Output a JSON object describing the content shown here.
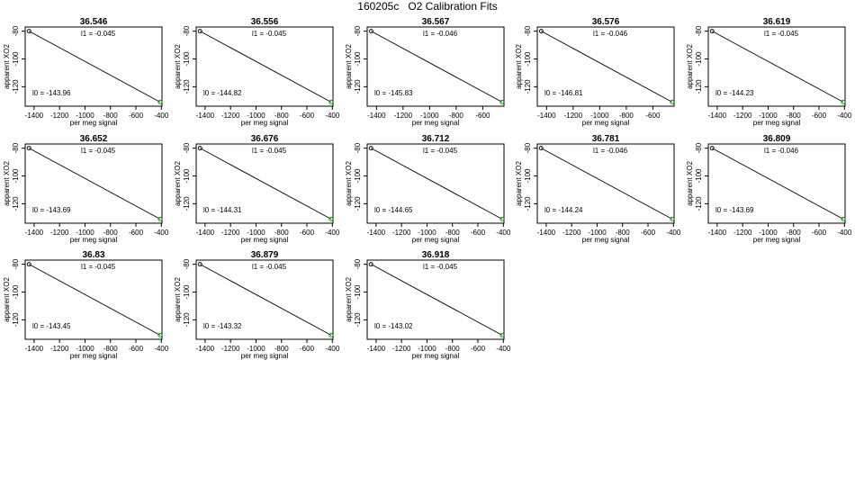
{
  "title": "160205c   O2 Calibration Fits",
  "colors": {
    "fit_line": "#000000",
    "start_marker": "#000000",
    "end_marker": "#00aa00",
    "frame": "#000000"
  },
  "chart_data": [
    {
      "type": "line",
      "title": "36.546",
      "xlabel": "per meg signal",
      "ylabel": "apparent XO2",
      "xticks": [
        -1400,
        -1200,
        -1000,
        -800,
        -600,
        -400
      ],
      "yticks": [
        -80,
        -100,
        -120
      ],
      "xlim": [
        -1470,
        -395
      ],
      "ylim": [
        -134,
        -77
      ],
      "x": [
        -1440,
        -410
      ],
      "y": [
        -80,
        -131
      ],
      "l1": "l1 =  -0.045",
      "l0": "l0 =  -143.96"
    },
    {
      "type": "line",
      "title": "36.556",
      "xlabel": "per meg signal",
      "ylabel": "apparent XO2",
      "xticks": [
        -1400,
        -1200,
        -1000,
        -800,
        -600,
        -400
      ],
      "yticks": [
        -80,
        -100,
        -120
      ],
      "xlim": [
        -1470,
        -395
      ],
      "ylim": [
        -134,
        -77
      ],
      "x": [
        -1440,
        -410
      ],
      "y": [
        -80,
        -131
      ],
      "l1": "l1 =  -0.045",
      "l0": "l0 =  -144.82"
    },
    {
      "type": "line",
      "title": "36.567",
      "xlabel": "per meg signal",
      "ylabel": "apparent XO2",
      "xticks": [
        -1400,
        -1200,
        -1000,
        -800,
        -600
      ],
      "yticks": [
        -80,
        -100,
        -120
      ],
      "xlim": [
        -1470,
        -440
      ],
      "ylim": [
        -134,
        -77
      ],
      "x": [
        -1440,
        -455
      ],
      "y": [
        -80,
        -131
      ],
      "l1": "l1 =  -0.046",
      "l0": "l0 =  -145.83"
    },
    {
      "type": "line",
      "title": "36.576",
      "xlabel": "per meg signal",
      "ylabel": "apparent XO2",
      "xticks": [
        -1400,
        -1200,
        -1000,
        -800,
        -600
      ],
      "yticks": [
        -80,
        -100,
        -120
      ],
      "xlim": [
        -1470,
        -440
      ],
      "ylim": [
        -134,
        -77
      ],
      "x": [
        -1440,
        -455
      ],
      "y": [
        -80,
        -131
      ],
      "l1": "l1 =  -0.046",
      "l0": "l0 =  -146.81"
    },
    {
      "type": "line",
      "title": "36.619",
      "xlabel": "per meg signal",
      "ylabel": "apparent XO2",
      "xticks": [
        -1400,
        -1200,
        -1000,
        -800,
        -600,
        -400
      ],
      "yticks": [
        -80,
        -100,
        -120
      ],
      "xlim": [
        -1470,
        -395
      ],
      "ylim": [
        -134,
        -77
      ],
      "x": [
        -1440,
        -410
      ],
      "y": [
        -80,
        -131
      ],
      "l1": "l1 =  -0.045",
      "l0": "l0 =  -144.23"
    },
    {
      "type": "line",
      "title": "36.652",
      "xlabel": "per meg signal",
      "ylabel": "apparent XO2",
      "xticks": [
        -1400,
        -1200,
        -1000,
        -800,
        -600,
        -400
      ],
      "yticks": [
        -80,
        -100,
        -120
      ],
      "xlim": [
        -1470,
        -395
      ],
      "ylim": [
        -134,
        -77
      ],
      "x": [
        -1440,
        -410
      ],
      "y": [
        -80,
        -131
      ],
      "l1": "l1 =  -0.045",
      "l0": "l0 =  -143.69"
    },
    {
      "type": "line",
      "title": "36.676",
      "xlabel": "per meg signal",
      "ylabel": "apparent XO2",
      "xticks": [
        -1400,
        -1200,
        -1000,
        -800,
        -600,
        -400
      ],
      "yticks": [
        -80,
        -100,
        -120
      ],
      "xlim": [
        -1470,
        -395
      ],
      "ylim": [
        -134,
        -77
      ],
      "x": [
        -1440,
        -410
      ],
      "y": [
        -80,
        -131
      ],
      "l1": "l1 =  -0.045",
      "l0": "l0 =  -144.31"
    },
    {
      "type": "line",
      "title": "36.712",
      "xlabel": "per meg signal",
      "ylabel": "apparent XO2",
      "xticks": [
        -1400,
        -1200,
        -1000,
        -800,
        -600,
        -400
      ],
      "yticks": [
        -80,
        -100,
        -120
      ],
      "xlim": [
        -1470,
        -395
      ],
      "ylim": [
        -134,
        -77
      ],
      "x": [
        -1440,
        -410
      ],
      "y": [
        -80,
        -131
      ],
      "l1": "l1 =  -0.045",
      "l0": "l0 =  -144.65"
    },
    {
      "type": "line",
      "title": "36.781",
      "xlabel": "per meg signal",
      "ylabel": "apparent XO2",
      "xticks": [
        -1400,
        -1200,
        -1000,
        -800,
        -600,
        -400
      ],
      "yticks": [
        -80,
        -100,
        -120
      ],
      "xlim": [
        -1470,
        -395
      ],
      "ylim": [
        -134,
        -77
      ],
      "x": [
        -1440,
        -410
      ],
      "y": [
        -80,
        -131
      ],
      "l1": "l1 =  -0.046",
      "l0": "l0 =  -144.24"
    },
    {
      "type": "line",
      "title": "36.809",
      "xlabel": "per meg signal",
      "ylabel": "apparent XO2",
      "xticks": [
        -1400,
        -1200,
        -1000,
        -800,
        -600,
        -400
      ],
      "yticks": [
        -80,
        -100,
        -120
      ],
      "xlim": [
        -1470,
        -395
      ],
      "ylim": [
        -134,
        -77
      ],
      "x": [
        -1440,
        -410
      ],
      "y": [
        -80,
        -131
      ],
      "l1": "l1 =  -0.046",
      "l0": "l0 =  -143.69"
    },
    {
      "type": "line",
      "title": "36.83",
      "xlabel": "per meg signal",
      "ylabel": "apparent XO2",
      "xticks": [
        -1400,
        -1200,
        -1000,
        -800,
        -600,
        -400
      ],
      "yticks": [
        -80,
        -100,
        -120
      ],
      "xlim": [
        -1470,
        -395
      ],
      "ylim": [
        -134,
        -77
      ],
      "x": [
        -1440,
        -410
      ],
      "y": [
        -80,
        -131
      ],
      "l1": "l1 =  -0.045",
      "l0": "l0 =  -143.45"
    },
    {
      "type": "line",
      "title": "36.879",
      "xlabel": "per meg signal",
      "ylabel": "apparent XO2",
      "xticks": [
        -1400,
        -1200,
        -1000,
        -800,
        -600,
        -400
      ],
      "yticks": [
        -80,
        -100,
        -120
      ],
      "xlim": [
        -1470,
        -395
      ],
      "ylim": [
        -134,
        -77
      ],
      "x": [
        -1440,
        -410
      ],
      "y": [
        -80,
        -131
      ],
      "l1": "l1 =  -0.045",
      "l0": "l0 =  -143.32"
    },
    {
      "type": "line",
      "title": "36.918",
      "xlabel": "per meg signal",
      "ylabel": "apparent XO2",
      "xticks": [
        -1400,
        -1200,
        -1000,
        -800,
        -600,
        -400
      ],
      "yticks": [
        -80,
        -100,
        -120
      ],
      "xlim": [
        -1470,
        -395
      ],
      "ylim": [
        -134,
        -77
      ],
      "x": [
        -1440,
        -410
      ],
      "y": [
        -80,
        -131
      ],
      "l1": "l1 =  -0.045",
      "l0": "l0 =  -143.02"
    }
  ]
}
